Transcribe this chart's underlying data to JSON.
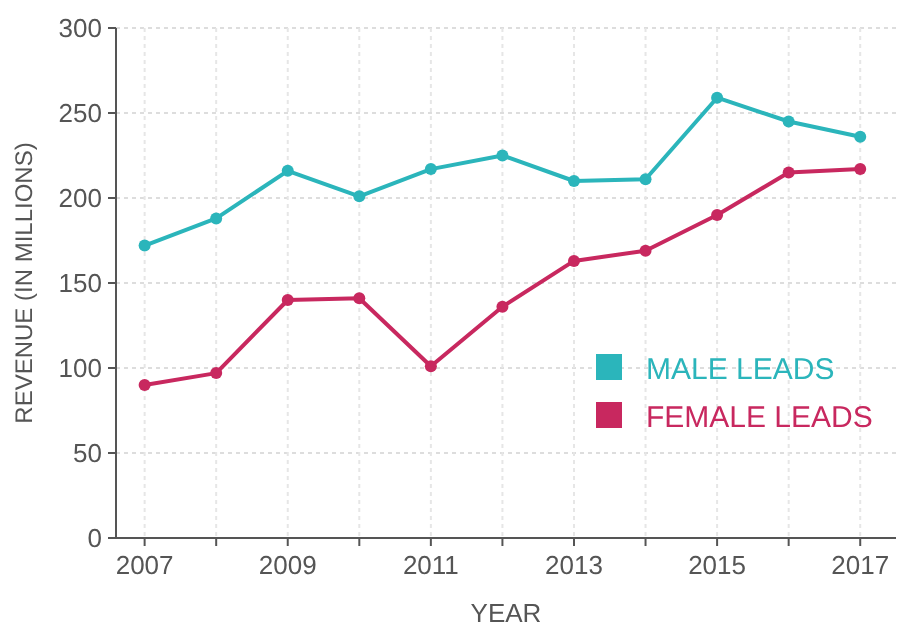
{
  "chart_data": {
    "type": "line",
    "xlabel": "YEAR",
    "ylabel": "REVENUE (IN MILLIONS)",
    "x": [
      2007,
      2008,
      2009,
      2010,
      2011,
      2012,
      2013,
      2014,
      2015,
      2016,
      2017
    ],
    "series": [
      {
        "name": "MALE LEADS",
        "color": "#2bb5bb",
        "values": [
          172,
          188,
          216,
          201,
          217,
          225,
          210,
          211,
          259,
          245,
          236
        ]
      },
      {
        "name": "FEMALE LEADS",
        "color": "#c8285f",
        "values": [
          90,
          97,
          140,
          141,
          101,
          136,
          163,
          169,
          190,
          215,
          217
        ]
      }
    ],
    "xlim": [
      2006.6,
      2017.5
    ],
    "xticks": [
      2007,
      2009,
      2011,
      2013,
      2015,
      2017
    ],
    "ylim": [
      0,
      300
    ],
    "yticks": [
      0,
      50,
      100,
      150,
      200,
      250,
      300
    ],
    "grid": true,
    "legend": "right",
    "marker": "circle",
    "line_style": "solid"
  }
}
